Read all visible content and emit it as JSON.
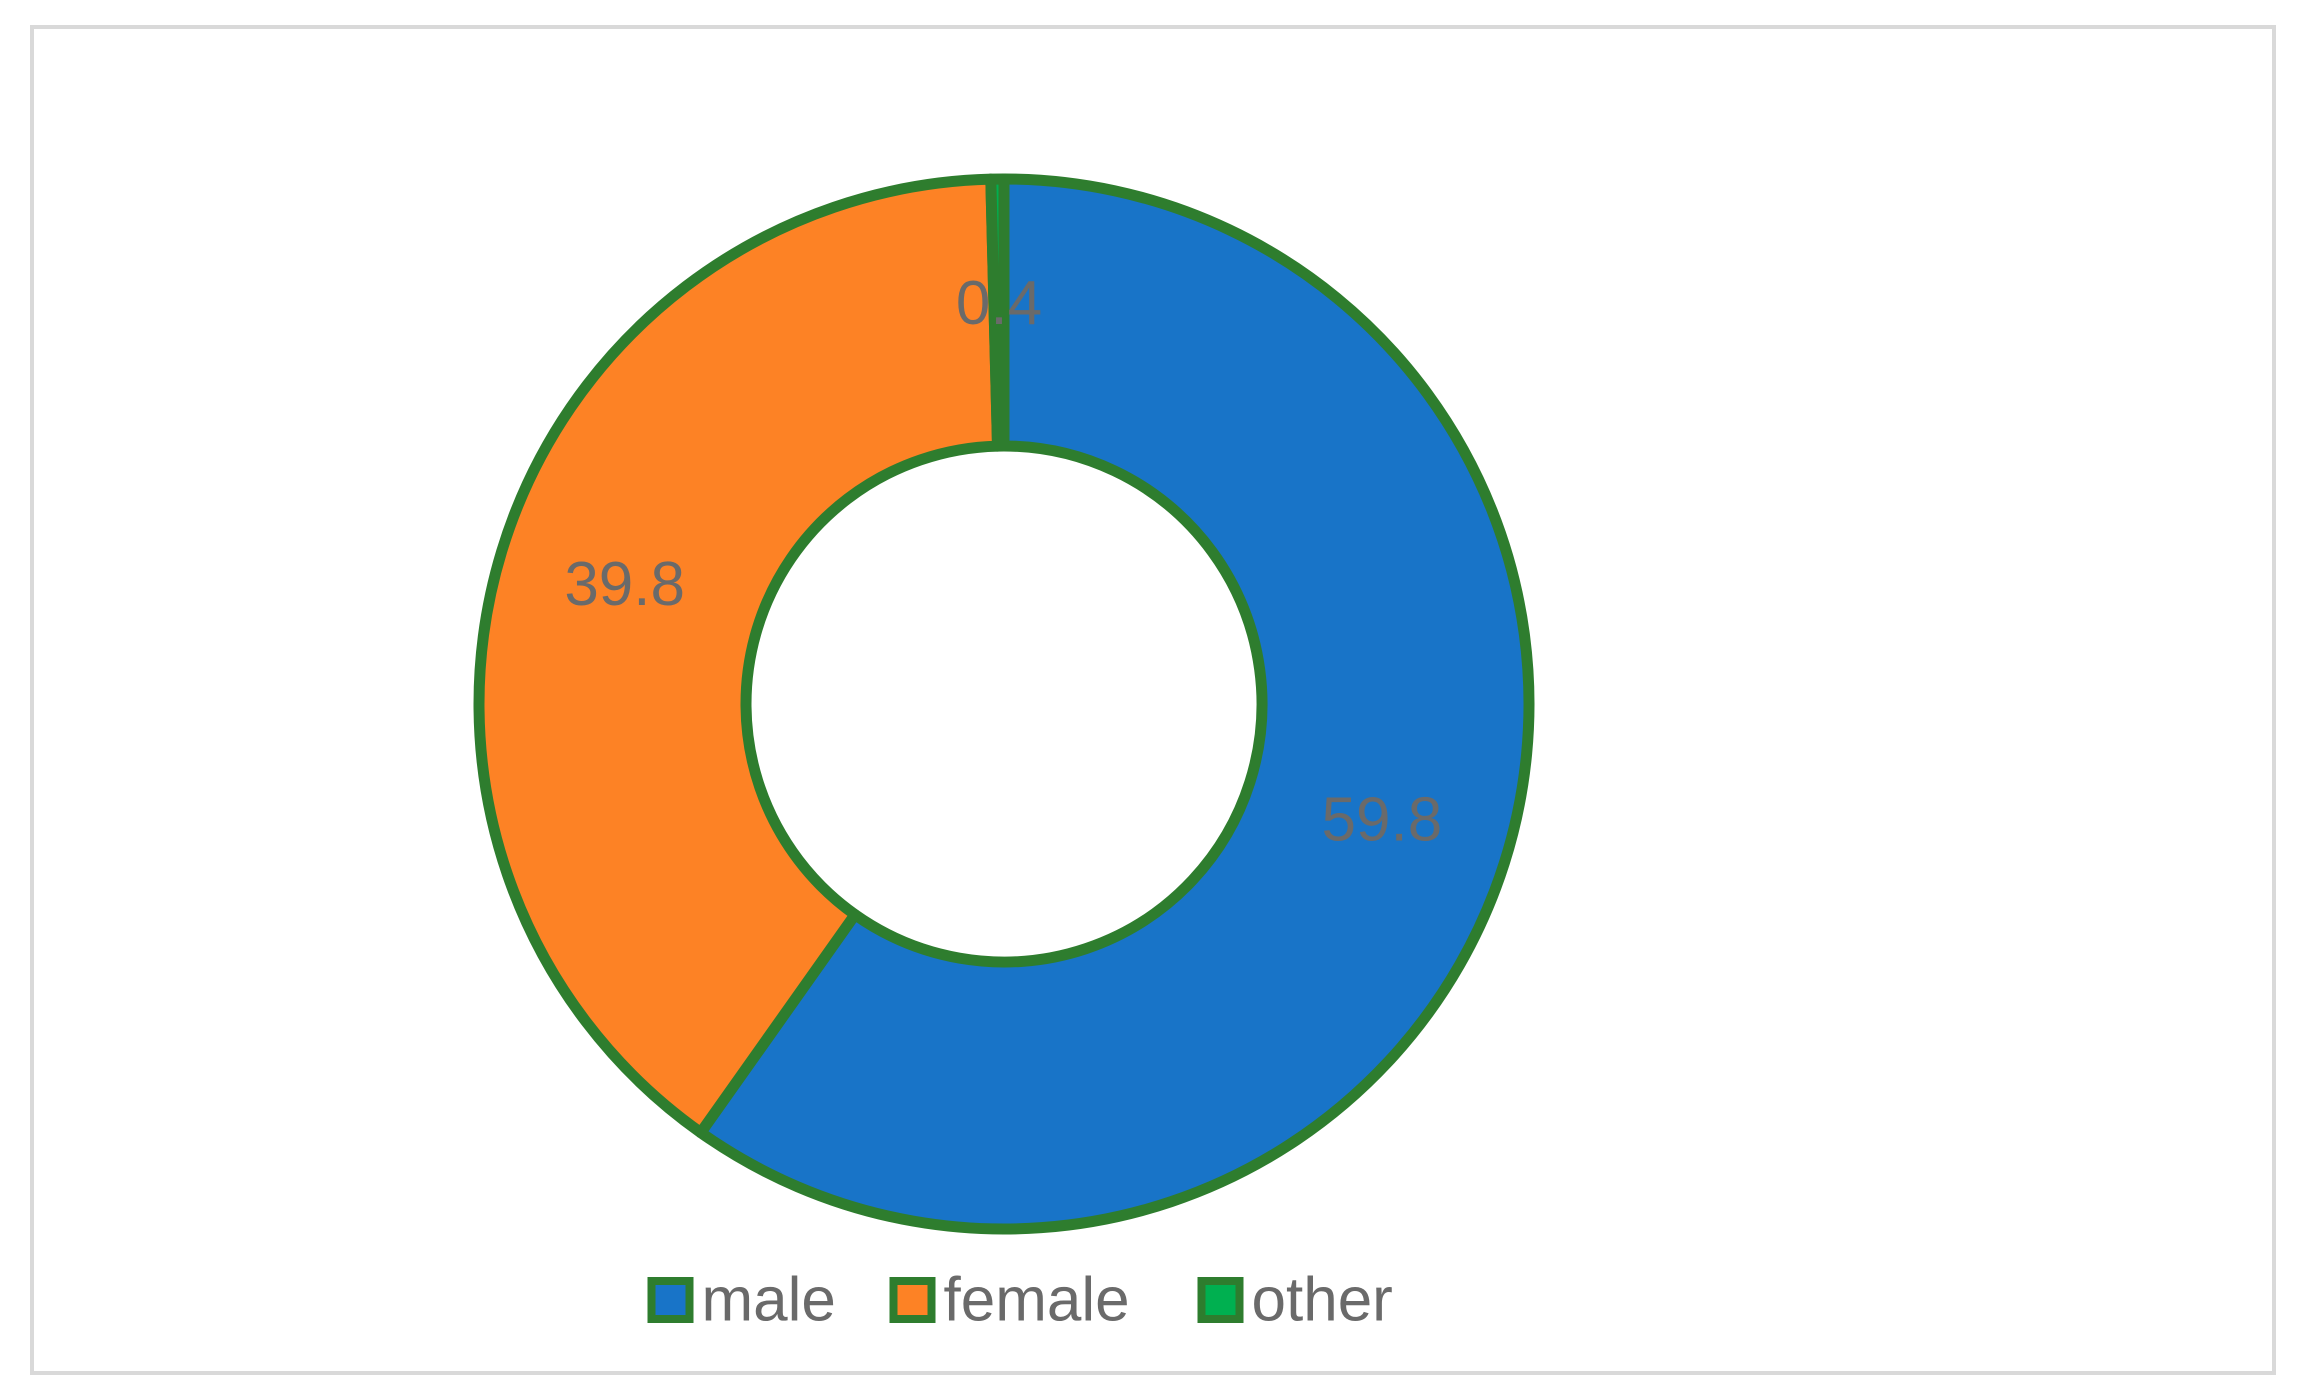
{
  "chart_data": {
    "type": "pie",
    "variant": "doughnut",
    "categories": [
      "male",
      "female",
      "other"
    ],
    "values": [
      59.8,
      39.8,
      0.4
    ],
    "data_labels": [
      "59.8",
      "39.8",
      "0.4"
    ],
    "colors": [
      "#1874c8",
      "#fd8225",
      "#00b050"
    ],
    "slice_border_color": "#2e7d2e",
    "legend": {
      "position": "bottom",
      "items": [
        "male",
        "female",
        "other"
      ]
    },
    "title": ""
  }
}
